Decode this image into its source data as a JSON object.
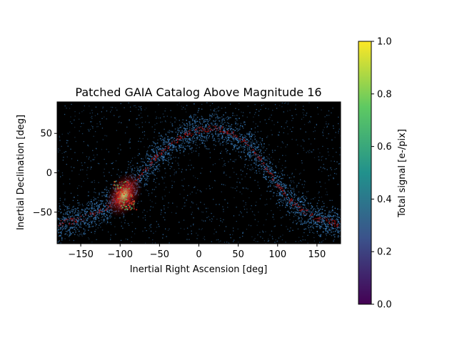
{
  "chart_data": {
    "type": "heatmap",
    "title": "Patched GAIA Catalog Above Magnitude 16",
    "xlabel": "Inertial Right Ascension [deg]",
    "ylabel": "Inertial Declination [deg]",
    "xlim": [
      -180,
      180
    ],
    "ylim": [
      -90,
      90
    ],
    "x_ticks": [
      -150,
      -100,
      -50,
      0,
      50,
      100,
      150
    ],
    "x_tick_labels": [
      "−150",
      "−100",
      "−50",
      "0",
      "50",
      "100",
      "150"
    ],
    "y_ticks": [
      50,
      0,
      -50
    ],
    "y_tick_labels": [
      "50",
      "0",
      "−50"
    ],
    "colorbar": {
      "label": "Total signal [e-/pix]",
      "range": [
        0.0,
        1.0
      ],
      "ticks": [
        0.0,
        0.2,
        0.4,
        0.6,
        0.8,
        1.0
      ],
      "tick_labels": [
        "0.0",
        "0.2",
        "0.4",
        "0.6",
        "0.8",
        "1.0"
      ],
      "colormap": "viridis",
      "colors": [
        "#440154",
        "#3b528b",
        "#21918c",
        "#5ec962",
        "#fde725"
      ]
    },
    "background_color": "#000000",
    "features": {
      "galactic_plane_ra": [
        -180,
        -150,
        -120,
        -100,
        -80,
        -60,
        -40,
        -20,
        0,
        20,
        40,
        60,
        80,
        100,
        120,
        150,
        180
      ],
      "galactic_plane_dec": [
        -65,
        -58,
        -45,
        -30,
        -10,
        15,
        35,
        48,
        55,
        58,
        52,
        38,
        15,
        -15,
        -40,
        -58,
        -65
      ],
      "dense_region_ra": -95,
      "dense_region_dec": -28,
      "dense_region_color": "#5ec962",
      "edge_glow_color": "#b01010",
      "star_color": "#3a7fc0"
    }
  }
}
